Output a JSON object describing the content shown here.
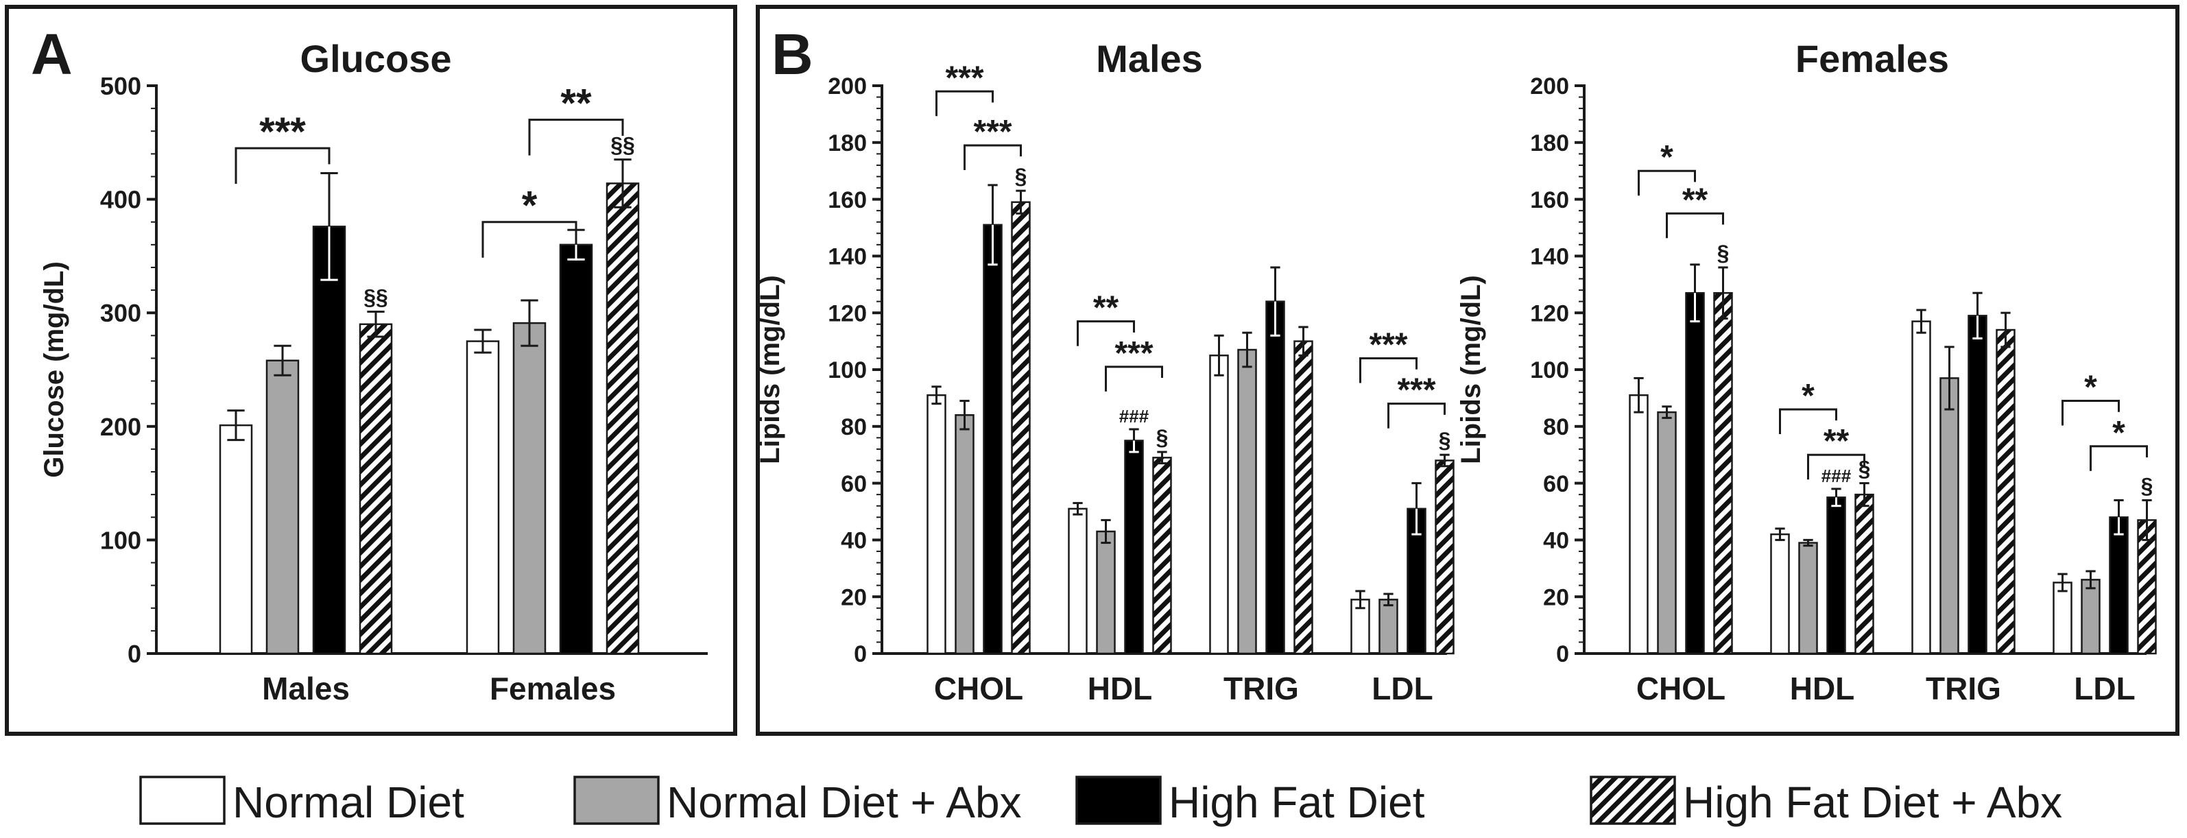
{
  "colors": {
    "normal": "#ffffff",
    "normal_abx": "#a6a6a6",
    "high_fat": "#000000",
    "high_fat_abx": "hatch",
    "stroke": "#1a1a1a",
    "frame": "#1a1a1a"
  },
  "legend": {
    "items": [
      {
        "key": "normal",
        "label": "Normal Diet"
      },
      {
        "key": "normal_abx",
        "label": "Normal Diet + Abx"
      },
      {
        "key": "high_fat",
        "label": "High Fat Diet"
      },
      {
        "key": "high_fat_abx",
        "label": "High Fat Diet + Abx"
      }
    ]
  },
  "chart_data": [
    {
      "id": "glucose",
      "panel": "A",
      "type": "bar",
      "title": "Glucose",
      "ylabel": "Glucose (mg/dL)",
      "ylim": [
        0,
        500
      ],
      "yticks": [
        0,
        100,
        200,
        300,
        400,
        500
      ],
      "categories": [
        "Males",
        "Females"
      ],
      "series": [
        {
          "name": "Normal Diet",
          "key": "normal",
          "values": [
            201,
            275
          ],
          "errors": [
            13,
            10
          ]
        },
        {
          "name": "Normal Diet + Abx",
          "key": "normal_abx",
          "values": [
            258,
            291
          ],
          "errors": [
            13,
            20
          ]
        },
        {
          "name": "High Fat Diet",
          "key": "high_fat",
          "values": [
            376,
            360
          ],
          "errors": [
            47,
            13
          ]
        },
        {
          "name": "High Fat Diet + Abx",
          "key": "high_fat_abx",
          "values": [
            290,
            414
          ],
          "errors": [
            11,
            21
          ]
        }
      ],
      "annotations": [
        {
          "cat": 1,
          "series": 3,
          "text": "§§"
        },
        {
          "cat": 0,
          "series": 3,
          "text": "§§"
        }
      ],
      "brackets": [
        {
          "cat": 0,
          "from": 0,
          "to": 2,
          "y": 445,
          "text": "***"
        },
        {
          "cat": 1,
          "from": 0,
          "to": 2,
          "y": 380,
          "text": "*"
        },
        {
          "cat": 1,
          "from": 1,
          "to": 3,
          "y": 470,
          "text": "**"
        }
      ]
    },
    {
      "id": "lipids_males",
      "panel": "B",
      "type": "bar",
      "title": "Males",
      "ylabel": "Lipids (mg/dL)",
      "ylim": [
        0,
        200
      ],
      "yticks": [
        0,
        20,
        40,
        60,
        80,
        100,
        120,
        140,
        160,
        180,
        200
      ],
      "categories": [
        "CHOL",
        "HDL",
        "TRIG",
        "LDL"
      ],
      "series": [
        {
          "name": "Normal Diet",
          "key": "normal",
          "values": [
            91,
            51,
            105,
            19
          ],
          "errors": [
            3,
            2,
            7,
            3
          ]
        },
        {
          "name": "Normal Diet + Abx",
          "key": "normal_abx",
          "values": [
            84,
            43,
            107,
            19
          ],
          "errors": [
            5,
            4,
            6,
            2
          ]
        },
        {
          "name": "High Fat Diet",
          "key": "high_fat",
          "values": [
            151,
            75,
            124,
            51
          ],
          "errors": [
            14,
            4,
            12,
            9
          ]
        },
        {
          "name": "High Fat Diet + Abx",
          "key": "high_fat_abx",
          "values": [
            159,
            69,
            110,
            68
          ],
          "errors": [
            4,
            2,
            5,
            2
          ]
        }
      ],
      "annotations": [
        {
          "cat": 0,
          "series": 3,
          "text": "§"
        },
        {
          "cat": 1,
          "series": 2,
          "text": "###"
        },
        {
          "cat": 1,
          "series": 3,
          "text": "§"
        },
        {
          "cat": 3,
          "series": 3,
          "text": "§"
        }
      ],
      "brackets": [
        {
          "cat": 0,
          "from": 0,
          "to": 2,
          "y": 198,
          "text": "***"
        },
        {
          "cat": 0,
          "from": 1,
          "to": 3,
          "y": 179,
          "text": "***"
        },
        {
          "cat": 1,
          "from": 0,
          "to": 2,
          "y": 117,
          "text": "**"
        },
        {
          "cat": 1,
          "from": 1,
          "to": 3,
          "y": 101,
          "text": "***"
        },
        {
          "cat": 3,
          "from": 0,
          "to": 2,
          "y": 104,
          "text": "***"
        },
        {
          "cat": 3,
          "from": 1,
          "to": 3,
          "y": 88,
          "text": "***"
        }
      ]
    },
    {
      "id": "lipids_females",
      "panel": "",
      "type": "bar",
      "title": "Females",
      "ylabel": "Lipids (mg/dL)",
      "ylim": [
        0,
        200
      ],
      "yticks": [
        0,
        20,
        40,
        60,
        80,
        100,
        120,
        140,
        160,
        180,
        200
      ],
      "categories": [
        "CHOL",
        "HDL",
        "TRIG",
        "LDL"
      ],
      "series": [
        {
          "name": "Normal Diet",
          "key": "normal",
          "values": [
            91,
            42,
            117,
            25
          ],
          "errors": [
            6,
            2,
            4,
            3
          ]
        },
        {
          "name": "Normal Diet + Abx",
          "key": "normal_abx",
          "values": [
            85,
            39,
            97,
            26
          ],
          "errors": [
            2,
            1,
            11,
            3
          ]
        },
        {
          "name": "High Fat Diet",
          "key": "high_fat",
          "values": [
            127,
            55,
            119,
            48
          ],
          "errors": [
            10,
            3,
            8,
            6
          ]
        },
        {
          "name": "High Fat Diet + Abx",
          "key": "high_fat_abx",
          "values": [
            127,
            56,
            114,
            47
          ],
          "errors": [
            9,
            4,
            6,
            7
          ]
        }
      ],
      "annotations": [
        {
          "cat": 0,
          "series": 3,
          "text": "§"
        },
        {
          "cat": 1,
          "series": 2,
          "text": "###"
        },
        {
          "cat": 1,
          "series": 3,
          "text": "§"
        },
        {
          "cat": 3,
          "series": 3,
          "text": "§"
        }
      ],
      "brackets": [
        {
          "cat": 0,
          "from": 0,
          "to": 2,
          "y": 170,
          "text": "*"
        },
        {
          "cat": 0,
          "from": 1,
          "to": 3,
          "y": 155,
          "text": "**"
        },
        {
          "cat": 1,
          "from": 0,
          "to": 2,
          "y": 86,
          "text": "*"
        },
        {
          "cat": 1,
          "from": 1,
          "to": 3,
          "y": 70,
          "text": "**"
        },
        {
          "cat": 3,
          "from": 0,
          "to": 2,
          "y": 89,
          "text": "*"
        },
        {
          "cat": 3,
          "from": 1,
          "to": 3,
          "y": 73,
          "text": "*"
        }
      ]
    }
  ]
}
